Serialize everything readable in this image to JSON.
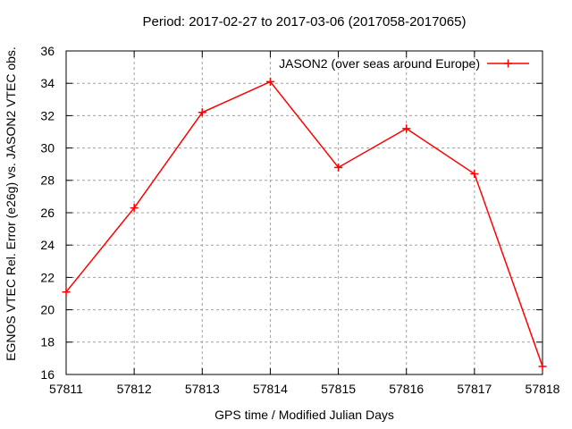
{
  "chart_data": {
    "type": "line",
    "title": "Period: 2017-02-27 to 2017-03-06 (2017058-2017065)",
    "xlabel": "GPS time / Modified Julian Days",
    "ylabel": "EGNOS VTEC Rel. Error (e26g) vs. JASON2 VTEC obs.",
    "x": [
      57811,
      57812,
      57813,
      57814,
      57815,
      57816,
      57817,
      57818
    ],
    "series": [
      {
        "name": "JASON2 (over seas around Europe)",
        "style": "linespoints",
        "marker": "plus",
        "color": "#ff0000",
        "values": [
          21.1,
          26.3,
          32.2,
          34.1,
          28.8,
          31.2,
          28.4,
          16.5
        ]
      }
    ],
    "xlim": [
      57811,
      57818
    ],
    "ylim": [
      16,
      36
    ],
    "x_ticks": [
      57811,
      57812,
      57813,
      57814,
      57815,
      57816,
      57817,
      57818
    ],
    "y_ticks": [
      16,
      18,
      20,
      22,
      24,
      26,
      28,
      30,
      32,
      34,
      36
    ],
    "grid": true,
    "grid_color": "#a0a0a0",
    "axis_color": "#000000",
    "text_color": "#000000",
    "background_color": "#ffffff",
    "legend_position": "top-right-inside"
  }
}
